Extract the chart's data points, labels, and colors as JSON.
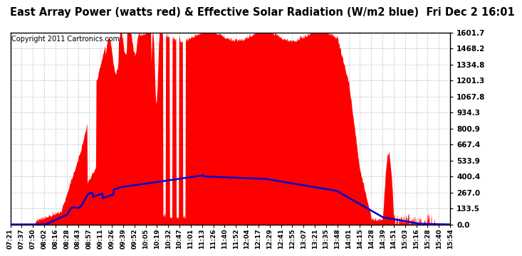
{
  "title": "East Array Power (watts red) & Effective Solar Radiation (W/m2 blue)  Fri Dec 2 16:01",
  "copyright": "Copyright 2011 Cartronics.com",
  "yticks": [
    0.0,
    133.5,
    267.0,
    400.4,
    533.9,
    667.4,
    800.9,
    934.3,
    1067.8,
    1201.3,
    1334.8,
    1468.2,
    1601.7
  ],
  "ymax": 1601.7,
  "background_color": "#ffffff",
  "grid_color": "#bbbbbb",
  "red_color": "#ff0000",
  "blue_color": "#0000cc",
  "xtick_labels": [
    "07:21",
    "07:37",
    "07:50",
    "08:02",
    "08:16",
    "08:28",
    "08:43",
    "08:57",
    "09:11",
    "09:26",
    "09:39",
    "09:52",
    "10:05",
    "10:19",
    "10:32",
    "10:47",
    "11:01",
    "11:13",
    "11:26",
    "11:40",
    "11:52",
    "12:04",
    "12:17",
    "12:29",
    "12:41",
    "12:55",
    "13:07",
    "13:21",
    "13:35",
    "13:48",
    "14:01",
    "14:15",
    "14:28",
    "14:39",
    "14:51",
    "15:03",
    "15:16",
    "15:28",
    "15:40",
    "15:54"
  ],
  "title_fontsize": 10.5,
  "copyright_fontsize": 7,
  "tick_fontsize": 7.5,
  "xtick_fontsize": 6.5
}
